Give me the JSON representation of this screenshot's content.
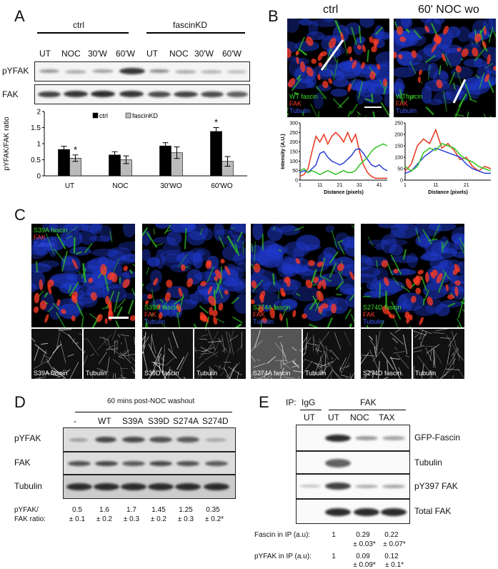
{
  "panel_A": {
    "letter": "A",
    "group_labels": [
      "ctrl",
      "fascinKD"
    ],
    "lane_labels": [
      "UT",
      "NOC",
      "30'W",
      "60'W",
      "UT",
      "NOC",
      "30'W",
      "60'W"
    ],
    "blot_labels": [
      "pYFAK",
      "FAK"
    ],
    "chart_data": {
      "type": "bar",
      "categories": [
        "UT",
        "NOC",
        "30'WO",
        "60'WO"
      ],
      "series": [
        {
          "name": "ctrl",
          "values": [
            0.82,
            0.65,
            0.93,
            1.38
          ],
          "errors": [
            0.1,
            0.1,
            0.1,
            0.12
          ],
          "color": "#000000"
        },
        {
          "name": "fascinKD",
          "values": [
            0.55,
            0.5,
            0.72,
            0.45
          ],
          "errors": [
            0.1,
            0.12,
            0.18,
            0.15
          ],
          "color": "#bbbbbb"
        }
      ],
      "ylabel": "pYFAK/FAK ratio",
      "ylim": [
        0,
        2
      ],
      "yticks": [
        "0",
        "0.5",
        "1",
        "1.5",
        "2"
      ],
      "significance": [
        {
          "category": "UT",
          "series": "fascinKD",
          "mark": "*"
        },
        {
          "category": "60'WO",
          "series": "ctrl",
          "mark": "*"
        }
      ]
    }
  },
  "panel_B": {
    "letter": "B",
    "titles": [
      "ctrl",
      "60' NOC wo"
    ],
    "channels_left": [
      "WT fascin",
      "FAK",
      "Tubulin"
    ],
    "channels_right": [
      "WTfascin",
      "FAK",
      "Tubulin"
    ],
    "chart_data": [
      {
        "type": "line",
        "ylabel": "Intensity (A.U.)",
        "xlabel": "Distance (pixels)",
        "ylim": [
          0,
          300
        ],
        "yticks": [
          "0",
          "50",
          "100",
          "150",
          "200",
          "250",
          "300"
        ],
        "xticks": [
          "1",
          "11",
          "21",
          "31",
          "41"
        ],
        "x": [
          1,
          3,
          5,
          7,
          9,
          11,
          13,
          15,
          17,
          19,
          21,
          23,
          25,
          27,
          29,
          31,
          33,
          35,
          37,
          39,
          41,
          43,
          45
        ],
        "series": [
          {
            "name": "FAK",
            "color": "#e8341c",
            "values": [
              20,
              30,
              60,
              150,
              230,
              200,
              240,
              190,
              230,
              250,
              230,
              200,
              250,
              200,
              240,
              150,
              80,
              40,
              20,
              10,
              10,
              10,
              10
            ]
          },
          {
            "name": "Tubulin",
            "color": "#2a3fd8",
            "values": [
              40,
              50,
              40,
              60,
              80,
              140,
              150,
              120,
              100,
              90,
              80,
              90,
              110,
              130,
              160,
              165,
              140,
              110,
              80,
              70,
              80,
              60,
              50
            ]
          },
          {
            "name": "WT fascin",
            "color": "#2ec41e",
            "values": [
              50,
              60,
              40,
              50,
              40,
              30,
              40,
              50,
              40,
              30,
              40,
              50,
              40,
              40,
              50,
              80,
              100,
              120,
              150,
              170,
              180,
              190,
              180
            ]
          }
        ]
      },
      {
        "type": "line",
        "ylabel": "",
        "xlabel": "Distance (pixels)",
        "ylim": [
          0,
          250
        ],
        "yticks": [
          "0",
          "50",
          "100",
          "150",
          "200",
          "250"
        ],
        "xticks": [
          "1",
          "11",
          "21"
        ],
        "x": [
          1,
          3,
          5,
          7,
          9,
          11,
          13,
          15,
          17,
          19,
          21,
          23,
          25,
          27,
          29
        ],
        "series": [
          {
            "name": "FAK",
            "color": "#e8341c",
            "values": [
              40,
              70,
              150,
              180,
              160,
              220,
              140,
              160,
              130,
              90,
              100,
              60,
              40,
              60,
              50
            ]
          },
          {
            "name": "Tubulin",
            "color": "#2a3fd8",
            "values": [
              30,
              40,
              70,
              100,
              120,
              140,
              130,
              120,
              110,
              100,
              70,
              50,
              40,
              30,
              30
            ]
          },
          {
            "name": "WT fascin",
            "color": "#2ec41e",
            "values": [
              60,
              40,
              60,
              120,
              140,
              130,
              160,
              150,
              140,
              110,
              90,
              80,
              60,
              50,
              40
            ]
          }
        ]
      }
    ]
  },
  "panel_C": {
    "letter": "C",
    "images": [
      {
        "channels": [
          "S39A fascin",
          "FAK",
          "Tubulin"
        ],
        "gray_labels": [
          "S39A fascin",
          "Tubulin"
        ]
      },
      {
        "channels": [
          "S39D fascin",
          "FAK",
          "Tubulin"
        ],
        "gray_labels": [
          "S39D fascin",
          "Tubulin"
        ]
      },
      {
        "channels": [
          "S274A fascin",
          "FAK",
          "Tubulin"
        ],
        "gray_labels": [
          "S274A fascin",
          "Tubulin"
        ]
      },
      {
        "channels": [
          "S274D fascin",
          "FAK",
          "Tubulin"
        ],
        "gray_labels": [
          "S274D fascin",
          "Tubulin"
        ]
      }
    ]
  },
  "panel_D": {
    "letter": "D",
    "title": "60 mins post-NOC washout",
    "lanes": [
      "-",
      "WT",
      "S39A",
      "S39D",
      "S274A",
      "S274D"
    ],
    "blot_labels": [
      "pYFAK",
      "FAK",
      "Tubulin"
    ],
    "ratio_label_1": "pYFAK/",
    "ratio_label_2": "FAK ratio:",
    "ratios": [
      "0.5",
      "1.6",
      "1.7",
      "1.45",
      "1.25",
      "0.35"
    ],
    "ratio_errors": [
      "± 0.1",
      "± 0.2",
      "± 0.3",
      "± 0.2",
      "± 0.3",
      "± 0.2*"
    ]
  },
  "panel_E": {
    "letter": "E",
    "ip_label": "IP:",
    "ip_groups": [
      "IgG",
      "FAK"
    ],
    "lanes": [
      "UT",
      "UT",
      "NOC",
      "TAX"
    ],
    "blot_labels": [
      "GFP-Fascin",
      "Tubulin",
      "pY397 FAK",
      "Total FAK"
    ],
    "quant": [
      {
        "label": "Fascin in IP (a.u):",
        "values": [
          "1",
          "0.29",
          "0.22"
        ],
        "errors": [
          "",
          "± 0.03*",
          "± 0.07*"
        ]
      },
      {
        "label": "pYFAK in IP (a.u):",
        "values": [
          "1",
          "0.09",
          "0.12"
        ],
        "errors": [
          "",
          "± 0.09*",
          "± 0.1*"
        ]
      }
    ]
  }
}
